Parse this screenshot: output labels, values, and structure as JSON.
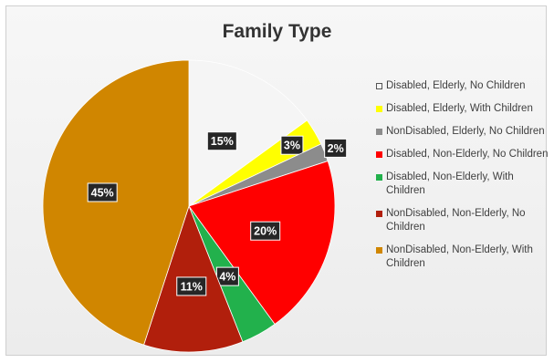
{
  "chart_data": {
    "type": "pie",
    "title": "Family Type",
    "legend_position": "right",
    "slices": [
      {
        "label": "Disabled, Elderly, No Children",
        "value": 15,
        "data_label": "15%",
        "color": "#f5f5f5"
      },
      {
        "label": "Disabled, Elderly, With Children",
        "value": 3,
        "data_label": "3%",
        "color": "#ffff00"
      },
      {
        "label": "NonDisabled, Elderly, No Children",
        "value": 2,
        "data_label": "2%",
        "color": "#8c8c8c"
      },
      {
        "label": "Disabled, Non-Elderly, No Children",
        "value": 20,
        "data_label": "20%",
        "color": "#ff0000"
      },
      {
        "label": "Disabled, Non-Elderly, With Children",
        "value": 4,
        "data_label": "4%",
        "color": "#22b14c"
      },
      {
        "label": "NonDisabled, Non-Elderly, No Children",
        "value": 11,
        "data_label": "11%",
        "color": "#b11f0c"
      },
      {
        "label": "NonDisabled, Non-Elderly, With Children",
        "value": 45,
        "data_label": "45%",
        "color": "#d08600"
      }
    ]
  }
}
